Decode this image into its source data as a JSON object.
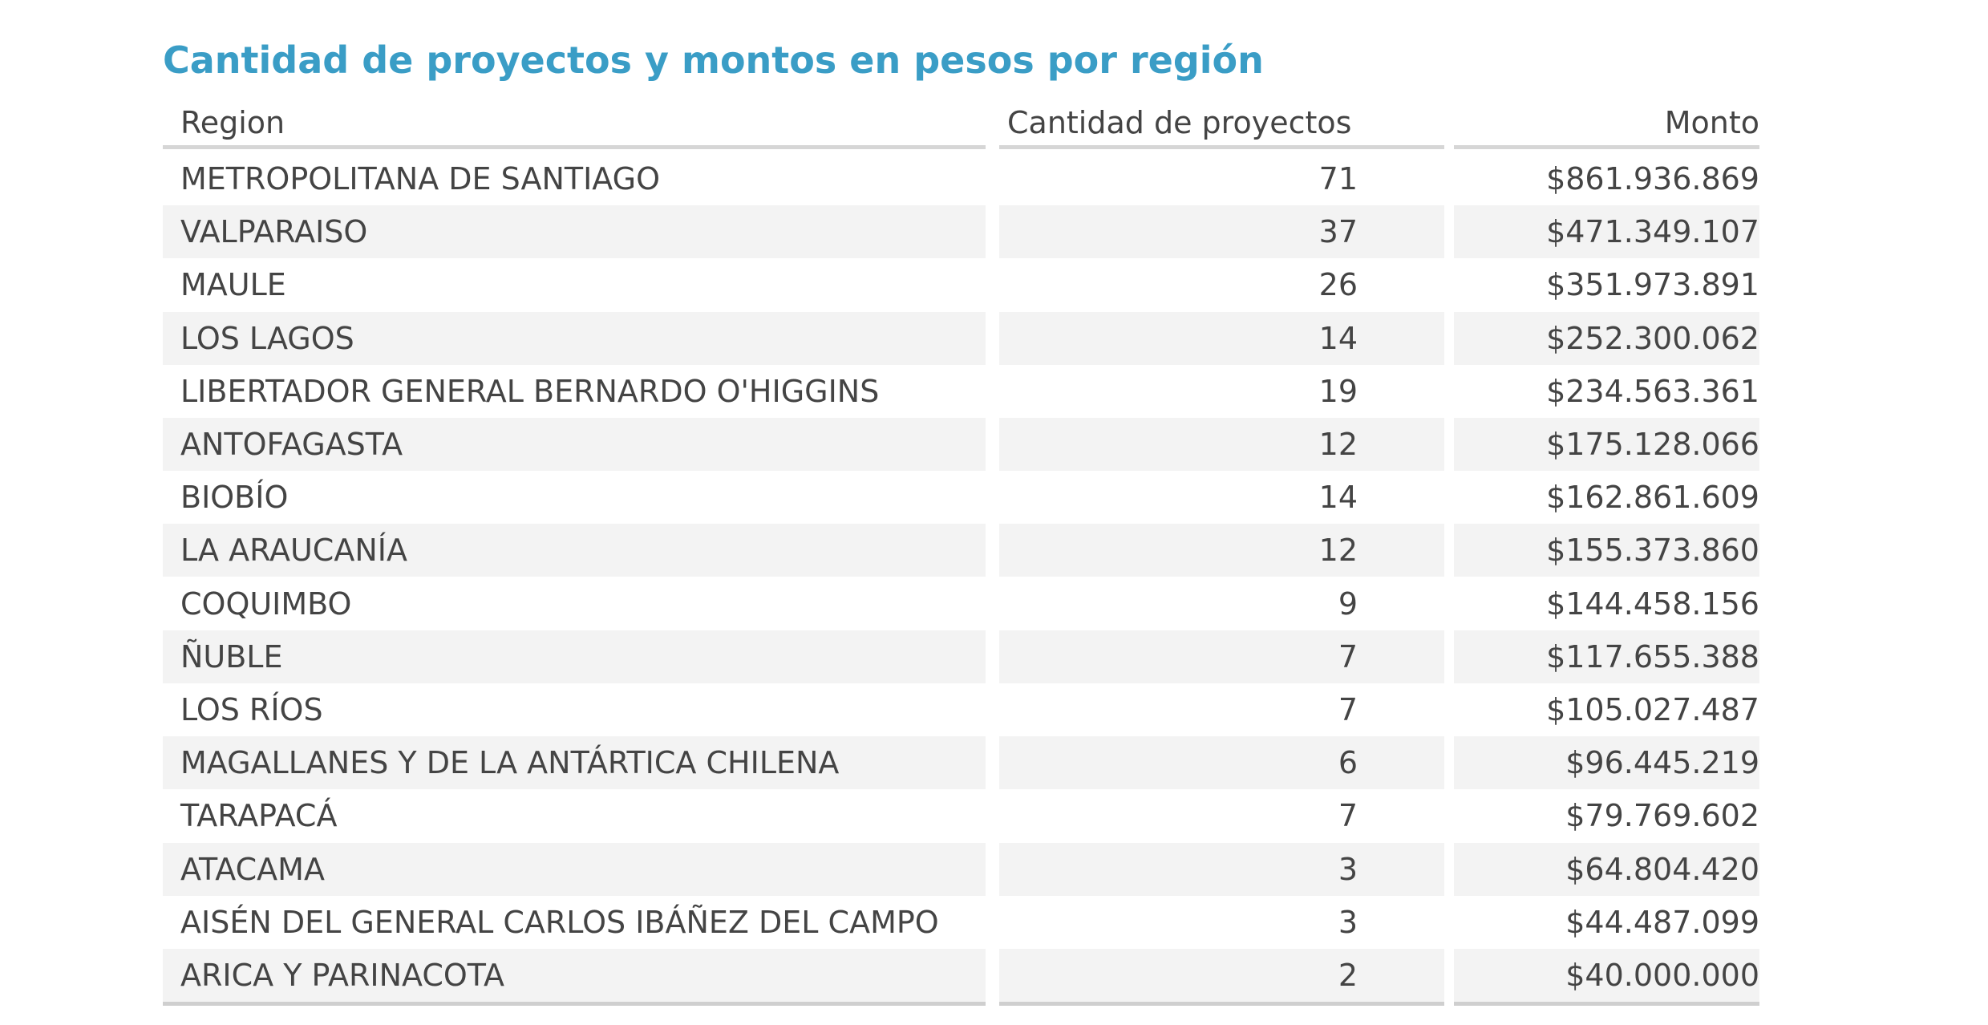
{
  "title": "Cantidad de proyectos y montos en pesos por región",
  "table": {
    "headers": [
      "Region",
      "Cantidad de proyectos",
      "Monto"
    ],
    "rows": [
      [
        "METROPOLITANA DE SANTIAGO",
        "71",
        "$861.936.869"
      ],
      [
        "VALPARAISO",
        "37",
        "$471.349.107"
      ],
      [
        "MAULE",
        "26",
        "$351.973.891"
      ],
      [
        "LOS LAGOS",
        "14",
        "$252.300.062"
      ],
      [
        "LIBERTADOR GENERAL BERNARDO O'HIGGINS",
        "19",
        "$234.563.361"
      ],
      [
        "ANTOFAGASTA",
        "12",
        "$175.128.066"
      ],
      [
        "BIOBÍO",
        "14",
        "$162.861.609"
      ],
      [
        "LA ARAUCANÍA",
        "12",
        "$155.373.860"
      ],
      [
        "COQUIMBO",
        "9",
        "$144.458.156"
      ],
      [
        "ÑUBLE",
        "7",
        "$117.655.388"
      ],
      [
        "LOS RÍOS",
        "7",
        "$105.027.487"
      ],
      [
        "MAGALLANES Y DE LA ANTÁRTICA CHILENA",
        "6",
        "$96.445.219"
      ],
      [
        "TARAPACÁ",
        "7",
        "$79.769.602"
      ],
      [
        "ATACAMA",
        "3",
        "$64.804.420"
      ],
      [
        "AISÉN DEL GENERAL CARLOS IBÁÑEZ DEL CAMPO",
        "3",
        "$44.487.099"
      ],
      [
        "ARICA Y PARINACOTA",
        "2",
        "$40.000.000"
      ]
    ]
  }
}
